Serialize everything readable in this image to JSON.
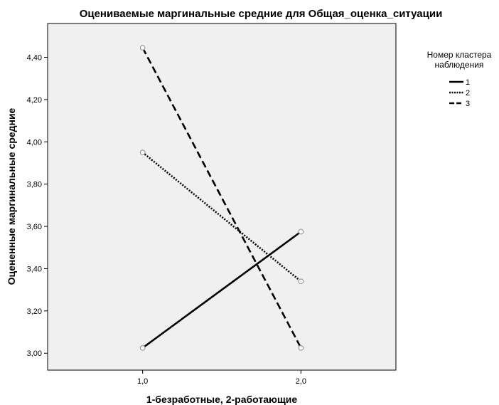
{
  "colors": {
    "plot_background": "#f0f0f0",
    "page_background": "#ffffff",
    "line": "#000000",
    "marker_stroke": "#9a9a9a"
  },
  "chart_data": {
    "type": "line",
    "title": "Оцениваемые маргинальные средние для Общая_оценка_ситуации",
    "xlabel": "1-безработные, 2-работающие",
    "ylabel": "Оцененные маргинальные средние",
    "x": [
      1.0,
      2.0
    ],
    "x_tick_labels": [
      "1,0",
      "2,0"
    ],
    "xlim": [
      0.4,
      2.6
    ],
    "ylim": [
      2.92,
      4.56
    ],
    "y_ticks": [
      3.0,
      3.2,
      3.4,
      3.6,
      3.8,
      4.0,
      4.2,
      4.4
    ],
    "y_tick_labels": [
      "3,00",
      "3,20",
      "3,40",
      "3,60",
      "3,80",
      "4,00",
      "4,20",
      "4,40"
    ],
    "grid": false,
    "legend": {
      "title_lines": [
        "Номер кластера",
        "наблюдения"
      ],
      "placement": "right"
    },
    "series": [
      {
        "name": "1",
        "style": "solid",
        "values": [
          3.025,
          3.575
        ]
      },
      {
        "name": "2",
        "style": "dotted",
        "values": [
          3.95,
          3.34
        ]
      },
      {
        "name": "3",
        "style": "dashed",
        "values": [
          4.445,
          3.025
        ]
      }
    ]
  }
}
